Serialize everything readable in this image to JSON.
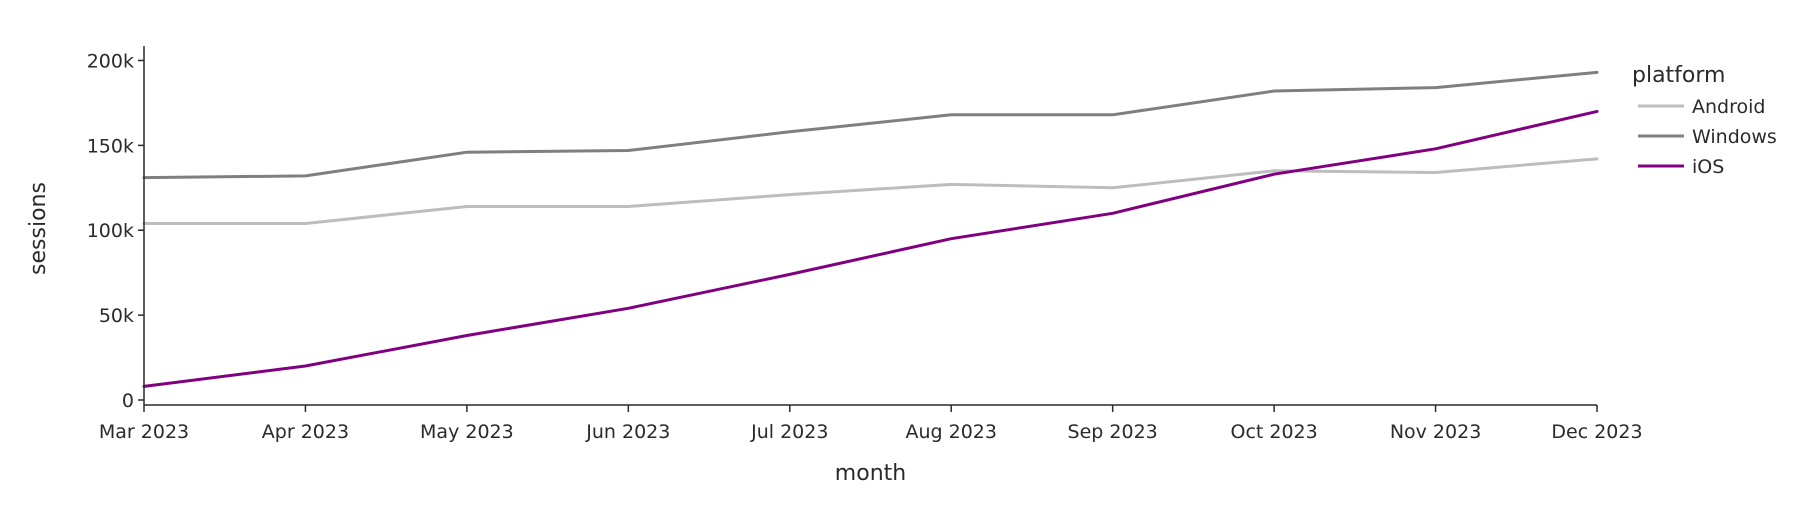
{
  "chart_data": {
    "type": "line",
    "xlabel": "month",
    "ylabel": "sessions",
    "x": [
      "Mar 2023",
      "Apr 2023",
      "May 2023",
      "Jun 2023",
      "Jul 2023",
      "Aug 2023",
      "Sep 2023",
      "Oct 2023",
      "Nov 2023",
      "Dec 2023"
    ],
    "ylim": [
      0,
      205000
    ],
    "yticks": [
      0,
      50000,
      100000,
      150000,
      200000
    ],
    "ytick_labels": [
      "0",
      "50k",
      "100k",
      "150k",
      "200k"
    ],
    "grid": false,
    "legend": {
      "title": "platform",
      "placement": "top-right"
    },
    "series": [
      {
        "name": "Android",
        "color": "#bdbdbd",
        "values": [
          104000,
          104000,
          114000,
          114000,
          121000,
          127000,
          125000,
          135000,
          134000,
          142000
        ]
      },
      {
        "name": "Windows",
        "color": "#7f7f7f",
        "values": [
          131000,
          132000,
          146000,
          147000,
          158000,
          168000,
          168000,
          182000,
          184000,
          193000
        ]
      },
      {
        "name": "iOS",
        "color": "#800080",
        "values": [
          8000,
          20000,
          38000,
          54000,
          74000,
          95000,
          110000,
          133000,
          148000,
          170000
        ]
      }
    ]
  }
}
